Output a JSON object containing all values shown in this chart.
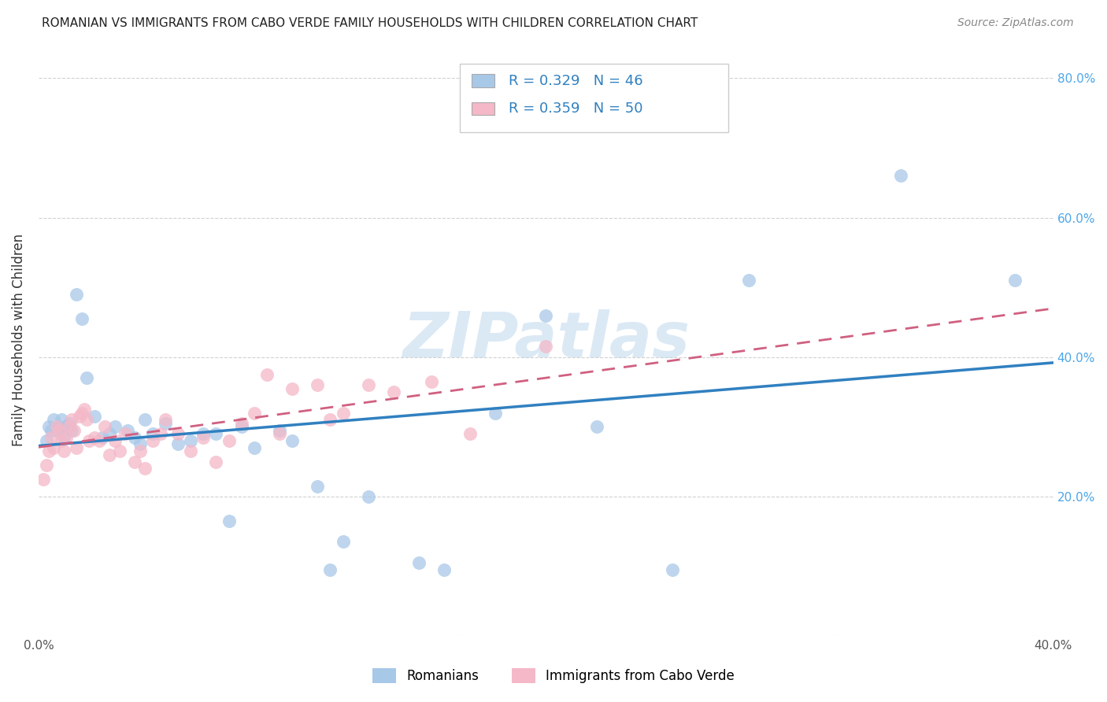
{
  "title": "ROMANIAN VS IMMIGRANTS FROM CABO VERDE FAMILY HOUSEHOLDS WITH CHILDREN CORRELATION CHART",
  "source": "Source: ZipAtlas.com",
  "ylabel": "Family Households with Children",
  "legend_label1": "Romanians",
  "legend_label2": "Immigrants from Cabo Verde",
  "r1": 0.329,
  "n1": 46,
  "r2": 0.359,
  "n2": 50,
  "color1": "#a8c8e8",
  "color2": "#f4b8c8",
  "line_color1": "#3080c0",
  "line_color2": "#d06080",
  "text_color": "#3080c0",
  "xlim": [
    0.0,
    0.4
  ],
  "ylim": [
    0.0,
    0.85
  ],
  "xtick_positions": [
    0.0,
    0.05,
    0.1,
    0.15,
    0.2,
    0.25,
    0.3,
    0.35,
    0.4
  ],
  "xtick_labels": [
    "0.0%",
    "",
    "",
    "",
    "",
    "",
    "",
    "",
    "40.0%"
  ],
  "ytick_positions": [
    0.0,
    0.2,
    0.4,
    0.6,
    0.8
  ],
  "right_ytick_labels": [
    "20.0%",
    "40.0%",
    "60.0%",
    "80.0%"
  ],
  "scatter1_x": [
    0.003,
    0.004,
    0.005,
    0.006,
    0.007,
    0.008,
    0.009,
    0.01,
    0.011,
    0.012,
    0.013,
    0.015,
    0.017,
    0.019,
    0.022,
    0.025,
    0.028,
    0.03,
    0.035,
    0.038,
    0.04,
    0.042,
    0.045,
    0.05,
    0.055,
    0.06,
    0.065,
    0.07,
    0.075,
    0.08,
    0.085,
    0.095,
    0.1,
    0.11,
    0.115,
    0.12,
    0.13,
    0.15,
    0.16,
    0.18,
    0.2,
    0.22,
    0.25,
    0.28,
    0.34,
    0.385
  ],
  "scatter1_y": [
    0.28,
    0.3,
    0.295,
    0.31,
    0.295,
    0.3,
    0.31,
    0.285,
    0.3,
    0.305,
    0.295,
    0.49,
    0.455,
    0.37,
    0.315,
    0.285,
    0.29,
    0.3,
    0.295,
    0.285,
    0.275,
    0.31,
    0.29,
    0.305,
    0.275,
    0.28,
    0.29,
    0.29,
    0.165,
    0.3,
    0.27,
    0.295,
    0.28,
    0.215,
    0.095,
    0.135,
    0.2,
    0.105,
    0.095,
    0.32,
    0.46,
    0.3,
    0.095,
    0.51,
    0.66,
    0.51
  ],
  "scatter2_x": [
    0.002,
    0.003,
    0.004,
    0.005,
    0.006,
    0.007,
    0.008,
    0.009,
    0.01,
    0.011,
    0.012,
    0.013,
    0.014,
    0.015,
    0.016,
    0.017,
    0.018,
    0.019,
    0.02,
    0.022,
    0.024,
    0.026,
    0.028,
    0.03,
    0.032,
    0.034,
    0.038,
    0.04,
    0.042,
    0.045,
    0.048,
    0.05,
    0.055,
    0.06,
    0.065,
    0.07,
    0.075,
    0.08,
    0.085,
    0.09,
    0.095,
    0.1,
    0.11,
    0.115,
    0.12,
    0.13,
    0.14,
    0.155,
    0.17,
    0.2
  ],
  "scatter2_y": [
    0.225,
    0.245,
    0.265,
    0.285,
    0.27,
    0.3,
    0.295,
    0.28,
    0.265,
    0.285,
    0.3,
    0.31,
    0.295,
    0.27,
    0.315,
    0.32,
    0.325,
    0.31,
    0.28,
    0.285,
    0.28,
    0.3,
    0.26,
    0.28,
    0.265,
    0.29,
    0.25,
    0.265,
    0.24,
    0.28,
    0.29,
    0.31,
    0.29,
    0.265,
    0.285,
    0.25,
    0.28,
    0.305,
    0.32,
    0.375,
    0.29,
    0.355,
    0.36,
    0.31,
    0.32,
    0.36,
    0.35,
    0.365,
    0.29,
    0.415
  ],
  "background_color": "#ffffff",
  "grid_color": "#cccccc",
  "watermark_text": "ZIPatlas",
  "watermark_color": "#b8d4ec"
}
